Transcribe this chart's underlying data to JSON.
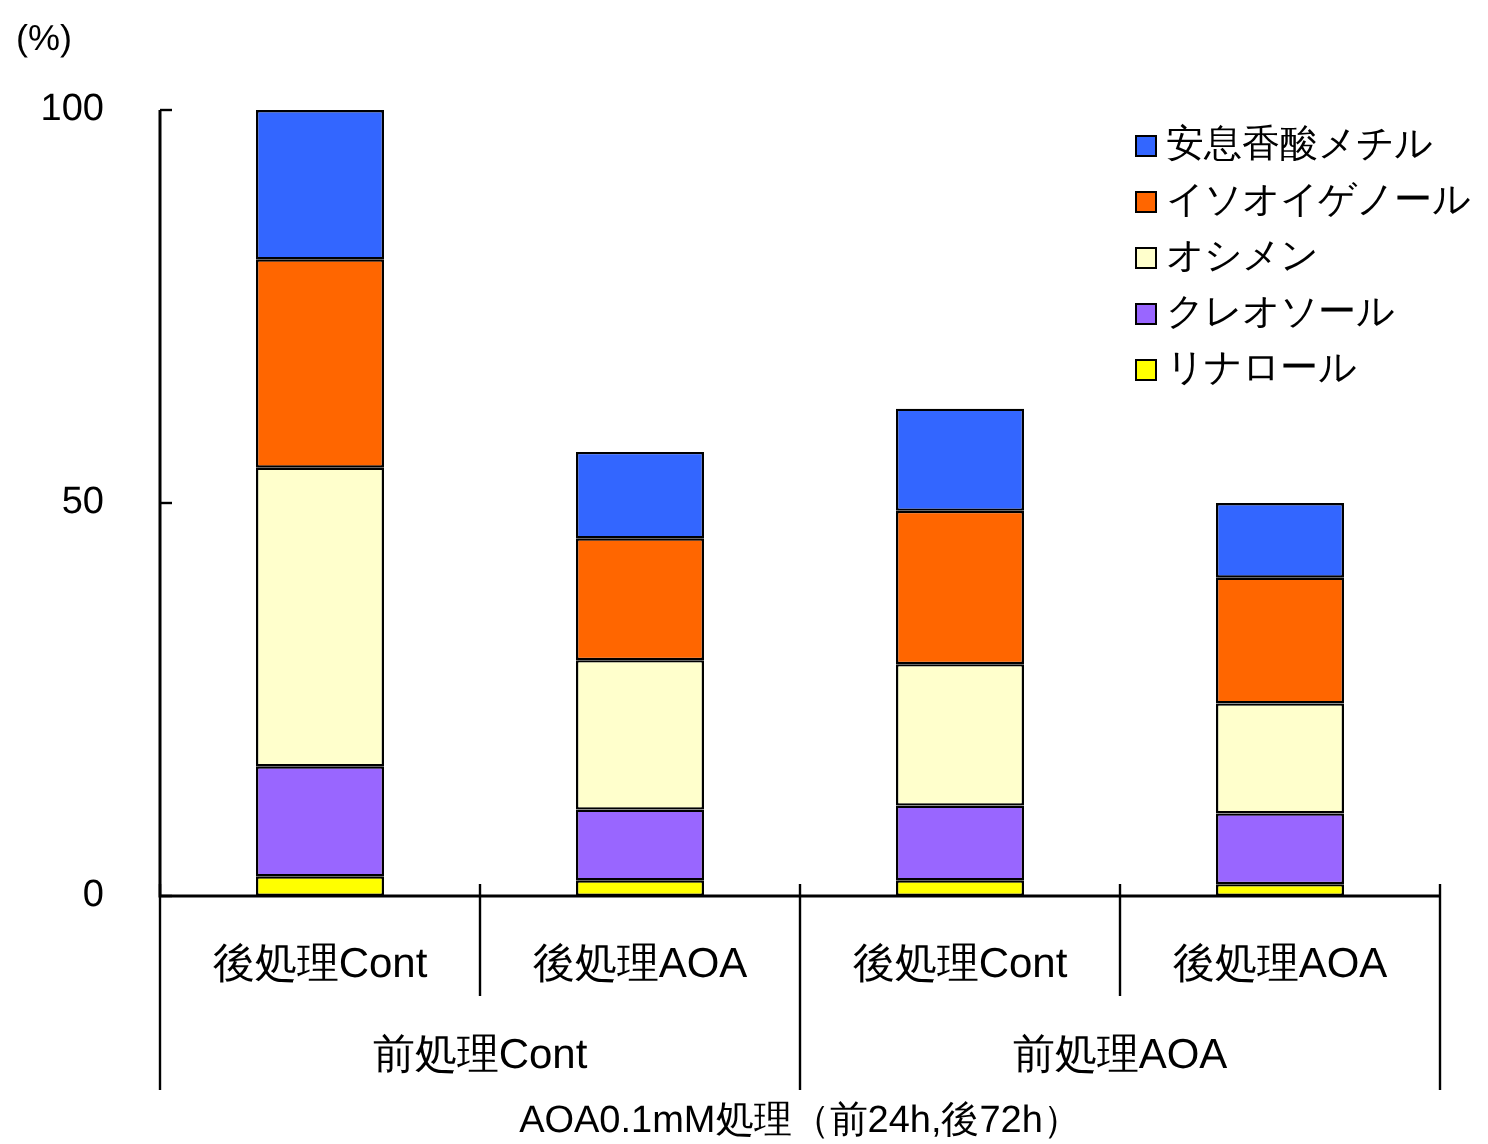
{
  "chart_data": {
    "type": "bar",
    "stacked": true,
    "categories": [
      "後処理Cont",
      "後処理AOA",
      "後処理Cont",
      "後処理AOA"
    ],
    "series": [
      {
        "name": "リナロール",
        "color": "#ffff00",
        "values": [
          2.5,
          2,
          2,
          1.5
        ]
      },
      {
        "name": "クレオソール",
        "color": "#9966ff",
        "values": [
          14,
          9,
          9.5,
          9
        ]
      },
      {
        "name": "オシメン",
        "color": "#ffffcc",
        "values": [
          38,
          19,
          18,
          14
        ]
      },
      {
        "name": "イソオイゲノール",
        "color": "#ff6600",
        "values": [
          26.5,
          15.5,
          19.5,
          16
        ]
      },
      {
        "name": "安息香酸メチル",
        "color": "#3366ff",
        "values": [
          19,
          11,
          13,
          9.5
        ]
      }
    ],
    "ylabel": "(%)",
    "xlabel": "AOA0.1mM処理（前24h,後72h）",
    "annotations": [
      "前処理Cont",
      "前処理AOA"
    ],
    "ylim": [
      0,
      100
    ],
    "yticks": [
      0,
      50,
      100
    ],
    "legend": "top right"
  }
}
